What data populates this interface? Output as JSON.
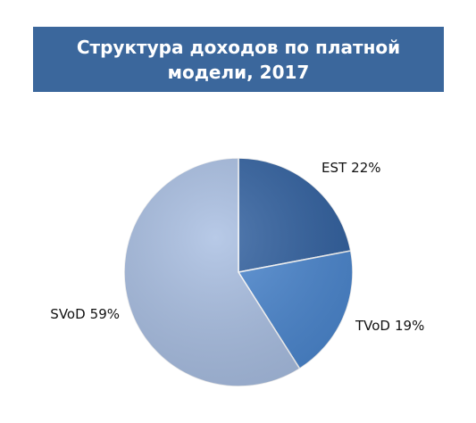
{
  "chart_data": {
    "type": "pie",
    "title": "Структура доходов по платной модели, 2017",
    "categories": [
      "EST",
      "TVoD",
      "SVoD"
    ],
    "values": [
      22,
      19,
      59
    ],
    "value_labels": [
      "22%",
      "19%",
      "59%"
    ],
    "colors": [
      "#2f5f9f",
      "#4a86cf",
      "#a8bee2"
    ]
  }
}
